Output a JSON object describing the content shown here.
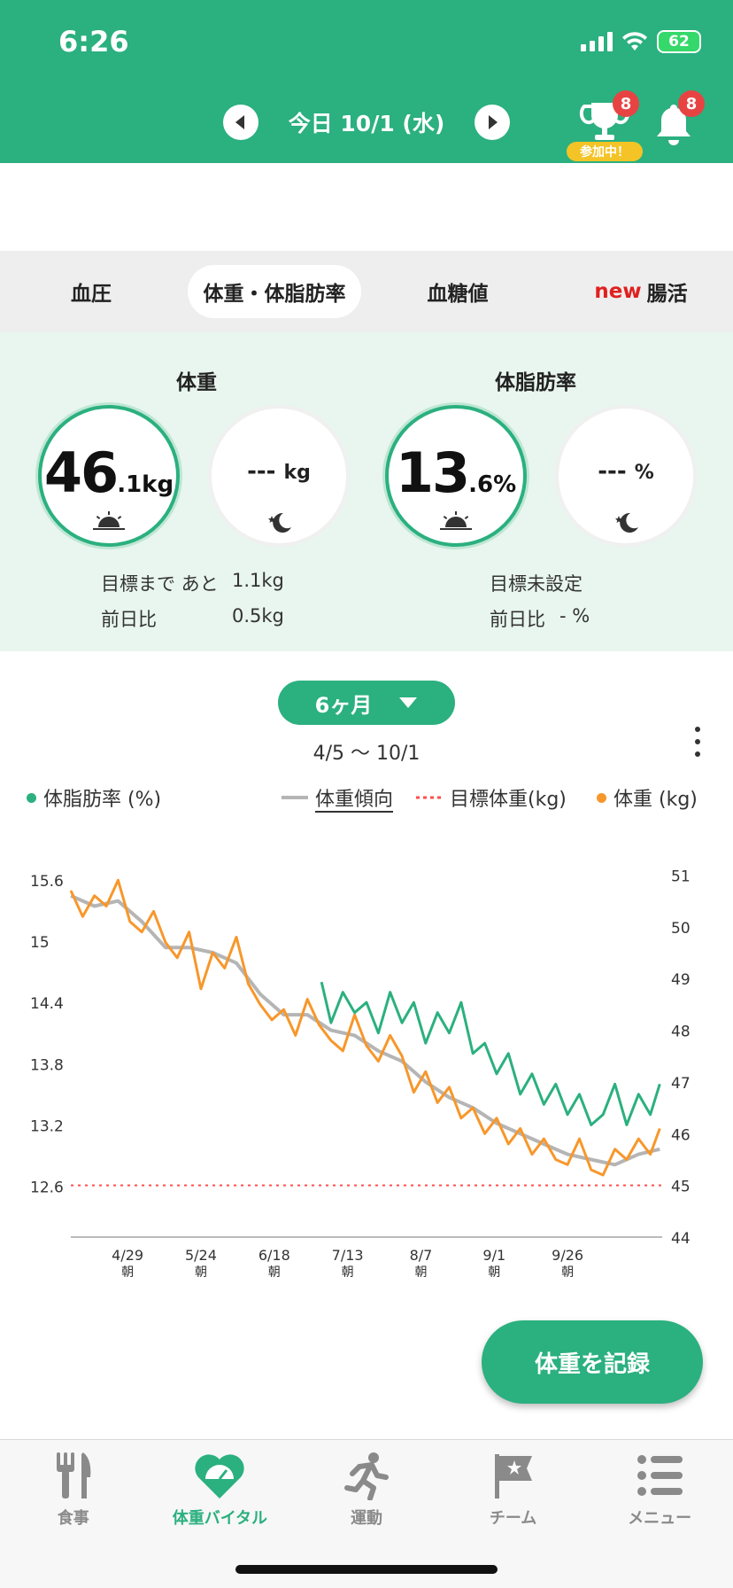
{
  "status_bar": {
    "time": "6:26",
    "battery": "62"
  },
  "header": {
    "date": "今日 10/1 (水)",
    "trophy_badge": "8",
    "trophy_label": "参加中！",
    "bell_badge": "8",
    "colors": {
      "brand": "#2bb07f",
      "badge": "#e84343",
      "pill": "#f4c326"
    }
  },
  "tabs": [
    {
      "label": "血圧",
      "new": ""
    },
    {
      "label": "体重・体脂肪率",
      "new": ""
    },
    {
      "label": "血糖値",
      "new": ""
    },
    {
      "label": "腸活",
      "new": "new"
    }
  ],
  "summary": {
    "weight": {
      "title": "体重",
      "morning_int": "46",
      "morning_dec": ".1",
      "morning_unit": "kg",
      "evening": "---",
      "evening_unit": "kg",
      "goal_label": "目標まで あと",
      "goal_value": "1.1kg",
      "diff_label": "前日比",
      "diff_value": "0.5kg"
    },
    "fat": {
      "title": "体脂肪率",
      "morning_int": "13",
      "morning_dec": ".6",
      "morning_unit": "%",
      "evening": "---",
      "evening_unit": "%",
      "goal_label": "目標未設定",
      "diff_label": "前日比",
      "diff_value": "- %"
    }
  },
  "period": {
    "label": "6ヶ月",
    "range": "4/5 〜 10/1"
  },
  "legend": {
    "fat": "体脂肪率 (%)",
    "trend": "体重傾向",
    "target": "目標体重(kg)",
    "weight": "体重 (kg)"
  },
  "chart_data": {
    "type": "line",
    "x_labels": [
      "4/29",
      "5/24",
      "6/18",
      "7/13",
      "8/7",
      "9/1",
      "9/26"
    ],
    "x_sublabel": "朝",
    "x_range": [
      "4/5",
      "10/1"
    ],
    "y_left": {
      "ticks": [
        15.6,
        15,
        14.4,
        13.8,
        13.2,
        12.6
      ],
      "range": [
        12.1,
        15.8
      ]
    },
    "y_right": {
      "ticks": [
        51,
        50,
        49,
        48,
        47,
        46,
        45,
        44
      ],
      "range": [
        44,
        51.3
      ]
    },
    "target_weight": 45,
    "series": [
      {
        "name": "体重 (kg)",
        "axis": "right",
        "color": "#f7972b",
        "points": [
          [
            0,
            50.7
          ],
          [
            5,
            50.2
          ],
          [
            10,
            50.6
          ],
          [
            15,
            50.4
          ],
          [
            20,
            50.9
          ],
          [
            25,
            50.1
          ],
          [
            30,
            49.9
          ],
          [
            35,
            50.3
          ],
          [
            40,
            49.7
          ],
          [
            45,
            49.4
          ],
          [
            50,
            49.9
          ],
          [
            55,
            48.8
          ],
          [
            60,
            49.5
          ],
          [
            65,
            49.2
          ],
          [
            70,
            49.8
          ],
          [
            75,
            48.9
          ],
          [
            80,
            48.5
          ],
          [
            85,
            48.2
          ],
          [
            90,
            48.4
          ],
          [
            95,
            47.9
          ],
          [
            100,
            48.6
          ],
          [
            105,
            48.1
          ],
          [
            110,
            47.8
          ],
          [
            115,
            47.6
          ],
          [
            120,
            48.3
          ],
          [
            125,
            47.7
          ],
          [
            130,
            47.4
          ],
          [
            135,
            47.9
          ],
          [
            140,
            47.5
          ],
          [
            145,
            46.8
          ],
          [
            150,
            47.2
          ],
          [
            155,
            46.6
          ],
          [
            160,
            46.9
          ],
          [
            165,
            46.3
          ],
          [
            170,
            46.5
          ],
          [
            175,
            46.0
          ],
          [
            180,
            46.3
          ],
          [
            185,
            45.8
          ],
          [
            190,
            46.1
          ],
          [
            195,
            45.6
          ],
          [
            200,
            45.9
          ],
          [
            205,
            45.5
          ],
          [
            210,
            45.4
          ],
          [
            215,
            45.9
          ],
          [
            220,
            45.3
          ],
          [
            225,
            45.2
          ],
          [
            230,
            45.7
          ],
          [
            235,
            45.5
          ],
          [
            240,
            45.9
          ],
          [
            245,
            45.6
          ],
          [
            249,
            46.1
          ]
        ]
      },
      {
        "name": "体重傾向",
        "axis": "right",
        "color": "#b5b5b5",
        "points": [
          [
            0,
            50.6
          ],
          [
            10,
            50.4
          ],
          [
            20,
            50.5
          ],
          [
            30,
            50.1
          ],
          [
            40,
            49.6
          ],
          [
            50,
            49.6
          ],
          [
            60,
            49.5
          ],
          [
            70,
            49.3
          ],
          [
            80,
            48.7
          ],
          [
            90,
            48.3
          ],
          [
            100,
            48.3
          ],
          [
            110,
            48.0
          ],
          [
            120,
            47.9
          ],
          [
            130,
            47.6
          ],
          [
            140,
            47.4
          ],
          [
            150,
            47.0
          ],
          [
            160,
            46.7
          ],
          [
            170,
            46.5
          ],
          [
            180,
            46.2
          ],
          [
            190,
            46.0
          ],
          [
            200,
            45.8
          ],
          [
            210,
            45.6
          ],
          [
            220,
            45.5
          ],
          [
            230,
            45.4
          ],
          [
            240,
            45.6
          ],
          [
            249,
            45.7
          ]
        ]
      },
      {
        "name": "体脂肪率 (%)",
        "axis": "left",
        "color": "#2bb07f",
        "points": [
          [
            106,
            14.6
          ],
          [
            110,
            14.2
          ],
          [
            115,
            14.5
          ],
          [
            120,
            14.3
          ],
          [
            125,
            14.4
          ],
          [
            130,
            14.1
          ],
          [
            135,
            14.5
          ],
          [
            140,
            14.2
          ],
          [
            145,
            14.4
          ],
          [
            150,
            14.0
          ],
          [
            155,
            14.3
          ],
          [
            160,
            14.1
          ],
          [
            165,
            14.4
          ],
          [
            170,
            13.9
          ],
          [
            175,
            14.0
          ],
          [
            180,
            13.7
          ],
          [
            185,
            13.9
          ],
          [
            190,
            13.5
          ],
          [
            195,
            13.7
          ],
          [
            200,
            13.4
          ],
          [
            205,
            13.6
          ],
          [
            210,
            13.3
          ],
          [
            215,
            13.5
          ],
          [
            220,
            13.2
          ],
          [
            225,
            13.3
          ],
          [
            230,
            13.6
          ],
          [
            235,
            13.2
          ],
          [
            240,
            13.5
          ],
          [
            245,
            13.3
          ],
          [
            249,
            13.6
          ]
        ]
      }
    ]
  },
  "record_button": "体重を記録",
  "bottom_nav": [
    {
      "label": "食事",
      "icon": "fork-knife-icon"
    },
    {
      "label": "体重バイタル",
      "icon": "heart-scale-icon"
    },
    {
      "label": "運動",
      "icon": "running-icon"
    },
    {
      "label": "チーム",
      "icon": "flag-icon"
    },
    {
      "label": "メニュー",
      "icon": "menu-list-icon"
    }
  ]
}
